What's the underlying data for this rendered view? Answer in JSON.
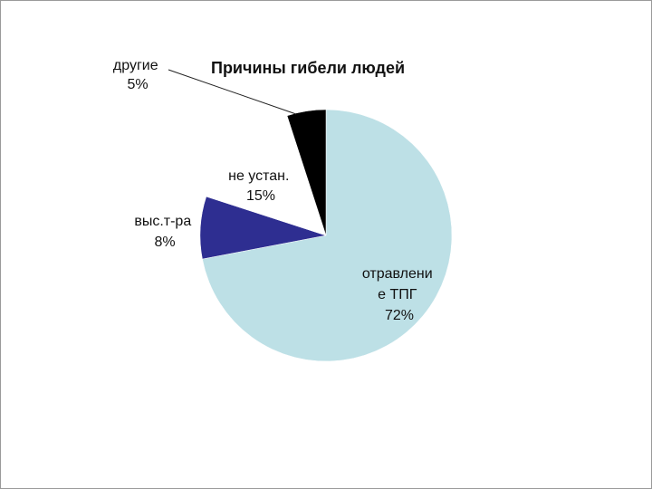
{
  "chart_data": {
    "type": "pie",
    "title": "Причины гибели людей",
    "categories": [
      "отравление ТПГ",
      "выс.т-ра",
      "не устан.",
      "другие"
    ],
    "values": [
      72,
      8,
      15,
      5
    ],
    "slice_labels": [
      [
        "отравлени",
        "е ТПГ",
        "72%"
      ],
      [
        "выс.т-ра",
        "8%"
      ],
      [
        "не устан.",
        "15%"
      ],
      [
        "другие",
        "5%"
      ]
    ],
    "colors": [
      "#bde0e6",
      "#2e2e91",
      "#ffffff",
      "#000000"
    ],
    "start_angle_deg": 90,
    "direction": "clockwise",
    "legend": "none"
  }
}
